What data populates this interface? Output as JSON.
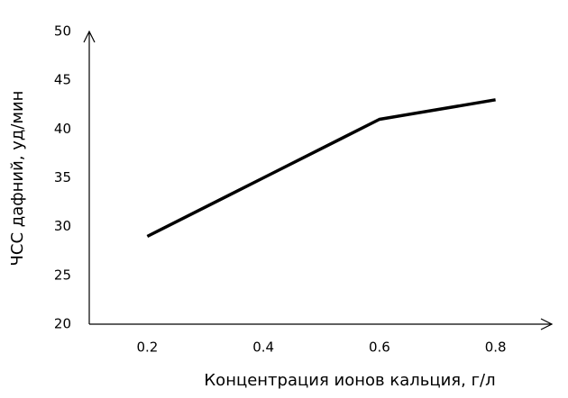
{
  "chart_data": {
    "type": "line",
    "x_label": "Концентрация ионов кальция, г/л",
    "y_label": "ЧСС дафний, уд/мин",
    "x": [
      0.2,
      0.4,
      0.6,
      0.8
    ],
    "series": [
      {
        "name": "ЧСС",
        "color": "#000000",
        "values": [
          29,
          35,
          41,
          43
        ]
      }
    ],
    "xlim": [
      0.1,
      0.9
    ],
    "xticks": [
      0.2,
      0.4,
      0.6,
      0.8
    ],
    "ylim": [
      20,
      50
    ],
    "yticks": [
      20,
      25,
      30,
      35,
      40,
      45,
      50
    ],
    "grid": false
  }
}
